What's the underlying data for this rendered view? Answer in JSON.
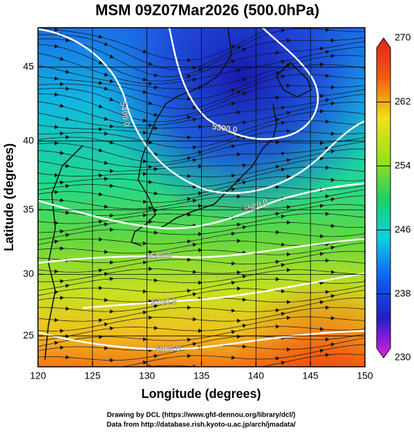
{
  "chart_data": {
    "type": "map",
    "title": "MSM 09Z07Mar2026 (500.0hPa)",
    "x_label": "Longitude (degrees)",
    "y_label": "Latitude  (degrees)",
    "projection": "mercator",
    "xlim": [
      120,
      150
    ],
    "ylim": [
      22.4,
      47.5
    ],
    "xticks": [
      120,
      125,
      130,
      135,
      140,
      145,
      150
    ],
    "yticks": [
      25,
      30,
      35,
      40,
      45
    ],
    "grid": true,
    "contours": [
      {
        "value": 5300,
        "label": "5300.0"
      },
      {
        "value": 5400,
        "label": "5400.0"
      },
      {
        "value": 5500,
        "label": "5500.0"
      },
      {
        "value": 5600,
        "label": "5600.0"
      },
      {
        "value": 5700,
        "label": "5700.0"
      },
      {
        "value": 5800,
        "label": "5800.0"
      }
    ],
    "colorbar": {
      "lim": [
        230,
        270
      ],
      "ticks": [
        230,
        238,
        246,
        254,
        262,
        270
      ],
      "colormap": [
        "#e020e0",
        "#2020c0",
        "#1060f0",
        "#10d0e0",
        "#20d060",
        "#a0e020",
        "#f0e020",
        "#f06010",
        "#e02020"
      ]
    },
    "footer": [
      "Drawing by DCL (https://www.gfd-dennou.org/library/dcl/)",
      "Data from http://database.rish.kyoto-u.ac.jp/arch/jmadata/"
    ]
  }
}
